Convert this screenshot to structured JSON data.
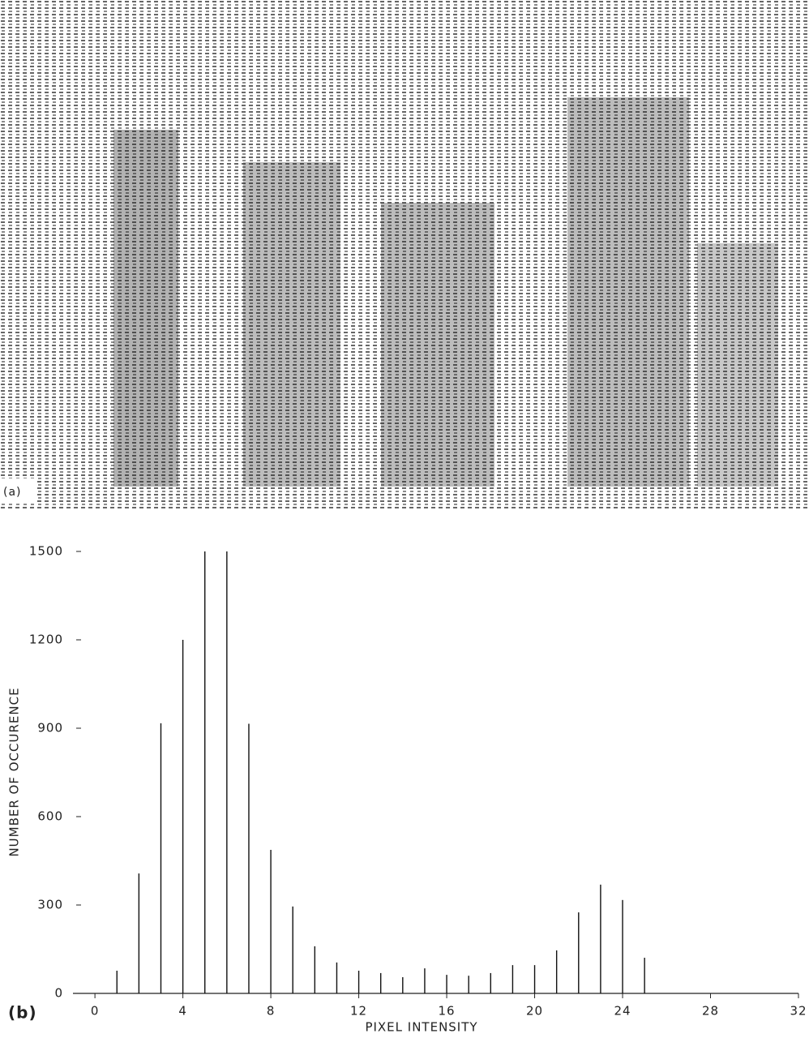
{
  "panel_a": {
    "label": "(a)"
  },
  "chart_data": {
    "type": "bar",
    "panel_label": "(b)",
    "xlabel": "PIXEL INTENSITY",
    "ylabel": "NUMBER OF OCCURENCE",
    "x": [
      1,
      2,
      3,
      4,
      5,
      6,
      7,
      8,
      9,
      10,
      11,
      12,
      13,
      14,
      15,
      16,
      17,
      18,
      19,
      20,
      21,
      22,
      23,
      24,
      25
    ],
    "values": [
      77,
      407,
      917,
      1200,
      1500,
      1500,
      915,
      487,
      295,
      160,
      105,
      77,
      69,
      55,
      85,
      63,
      60,
      69,
      96,
      96,
      146,
      275,
      369,
      317,
      121
    ],
    "color": "#111111",
    "xlim": [
      -1,
      32
    ],
    "xticks": [
      0,
      4,
      8,
      12,
      16,
      20,
      24,
      28,
      32
    ],
    "ylim": [
      0,
      1500
    ],
    "yticks": [
      0,
      300,
      600,
      900,
      1200,
      1500
    ]
  }
}
